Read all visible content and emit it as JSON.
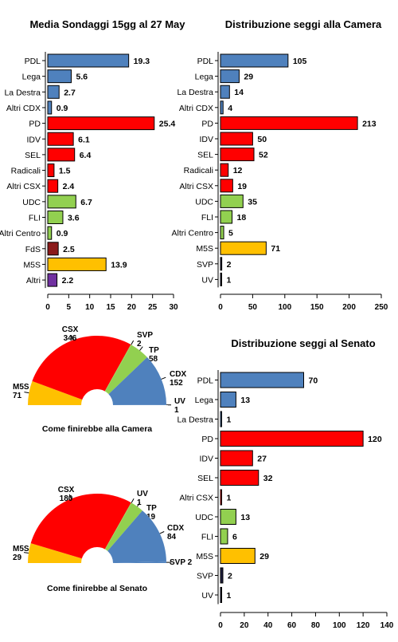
{
  "bar_charts": [
    {
      "title": "Media Sondaggi 15gg al 27 May",
      "xlim": [
        0,
        30
      ],
      "ticks": [
        0,
        5,
        10,
        15,
        20,
        25,
        30
      ],
      "categories": [
        "PDL",
        "Lega",
        "La Destra",
        "Altri CDX",
        "PD",
        "IDV",
        "SEL",
        "Radicali",
        "Altri CSX",
        "UDC",
        "FLI",
        "Altri Centro",
        "FdS",
        "M5S",
        "Altri"
      ],
      "values": [
        19.3,
        5.6,
        2.7,
        0.9,
        25.4,
        6.1,
        6.4,
        1.5,
        2.4,
        6.7,
        3.6,
        0.9,
        2.5,
        13.9,
        2.2
      ],
      "labels": [
        "19.3",
        "5.6",
        "2.7",
        "0.9",
        "25.4",
        "6.1",
        "6.4",
        "1.5",
        "2.4",
        "6.7",
        "3.6",
        "0.9",
        "2.5",
        "13.9",
        "2.2"
      ],
      "colors": [
        "#4F81BD",
        "#4F81BD",
        "#4F81BD",
        "#4F81BD",
        "#FF0000",
        "#FF0000",
        "#FF0000",
        "#FF0000",
        "#FF0000",
        "#92D050",
        "#92D050",
        "#92D050",
        "#8B1A1A",
        "#FFC000",
        "#7030A0"
      ]
    },
    {
      "title": "Distribuzione seggi alla Camera",
      "xlim": [
        0,
        250
      ],
      "ticks": [
        0,
        50,
        100,
        150,
        200,
        250
      ],
      "categories": [
        "PDL",
        "Lega",
        "La Destra",
        "Altri CDX",
        "PD",
        "IDV",
        "SEL",
        "Radicali",
        "Altri CSX",
        "UDC",
        "FLI",
        "Altri Centro",
        "M5S",
        "SVP",
        "UV"
      ],
      "values": [
        105,
        29,
        14,
        4,
        213,
        50,
        52,
        12,
        19,
        35,
        18,
        5,
        71,
        2,
        1
      ],
      "labels": [
        "105",
        "29",
        "14",
        "4",
        "213",
        "50",
        "52",
        "12",
        "19",
        "35",
        "18",
        "5",
        "71",
        "2",
        "1"
      ],
      "colors": [
        "#4F81BD",
        "#4F81BD",
        "#4F81BD",
        "#4F81BD",
        "#FF0000",
        "#FF0000",
        "#FF0000",
        "#FF0000",
        "#FF0000",
        "#92D050",
        "#92D050",
        "#92D050",
        "#FFC000",
        "#1F1F3F",
        "#1F1F3F"
      ]
    },
    {
      "title": "Distribuzione seggi al Senato",
      "xlim": [
        0,
        140
      ],
      "ticks": [
        0,
        20,
        40,
        60,
        80,
        100,
        120,
        140
      ],
      "categories": [
        "PDL",
        "Lega",
        "La Destra",
        "PD",
        "IDV",
        "SEL",
        "Altri CSX",
        "UDC",
        "FLI",
        "M5S",
        "SVP",
        "UV"
      ],
      "values": [
        70,
        13,
        1,
        120,
        27,
        32,
        1,
        13,
        6,
        29,
        2,
        1
      ],
      "labels": [
        "70",
        "13",
        "1",
        "120",
        "27",
        "32",
        "1",
        "13",
        "6",
        "29",
        "2",
        "1"
      ],
      "colors": [
        "#4F81BD",
        "#4F81BD",
        "#4F81BD",
        "#FF0000",
        "#FF0000",
        "#FF0000",
        "#FF0000",
        "#92D050",
        "#92D050",
        "#FFC000",
        "#1F1F3F",
        "#1F1F3F"
      ]
    }
  ],
  "pie_charts": [
    {
      "caption": "Come finirebbe alla Camera",
      "slices": [
        {
          "name": "M5S",
          "value": 71,
          "color": "#FFC000",
          "label": "M5S\n71"
        },
        {
          "name": "CSX",
          "value": 346,
          "color": "#FF0000",
          "label": "CSX\n346"
        },
        {
          "name": "SVP",
          "value": 2,
          "color": "#92D050",
          "label": "SVP\n2"
        },
        {
          "name": "TP",
          "value": 58,
          "color": "#92D050",
          "label": "TP\n58"
        },
        {
          "name": "CDX",
          "value": 152,
          "color": "#4F81BD",
          "label": "CDX\n152"
        },
        {
          "name": "UV",
          "value": 1,
          "color": "#4F81BD",
          "label": "UV\n1"
        }
      ]
    },
    {
      "caption": "Come finirebbe al Senato",
      "slices": [
        {
          "name": "M5S",
          "value": 29,
          "color": "#FFC000",
          "label": "M5S\n29"
        },
        {
          "name": "CSX",
          "value": 180,
          "color": "#FF0000",
          "label": "CSX\n180"
        },
        {
          "name": "UV",
          "value": 1,
          "color": "#92D050",
          "label": "UV\n1"
        },
        {
          "name": "TP",
          "value": 19,
          "color": "#92D050",
          "label": "TP\n19"
        },
        {
          "name": "CDX",
          "value": 84,
          "color": "#4F81BD",
          "label": "CDX\n84"
        },
        {
          "name": "SVP",
          "value": 2,
          "color": "#4F81BD",
          "label": "SVP 2"
        }
      ]
    }
  ],
  "chart_data": [
    {
      "type": "bar",
      "title": "Media Sondaggi 15gg al 27 May",
      "categories": [
        "PDL",
        "Lega",
        "La Destra",
        "Altri CDX",
        "PD",
        "IDV",
        "SEL",
        "Radicali",
        "Altri CSX",
        "UDC",
        "FLI",
        "Altri Centro",
        "FdS",
        "M5S",
        "Altri"
      ],
      "values": [
        19.3,
        5.6,
        2.7,
        0.9,
        25.4,
        6.1,
        6.4,
        1.5,
        2.4,
        6.7,
        3.6,
        0.9,
        2.5,
        13.9,
        2.2
      ],
      "xlim": [
        0,
        30
      ]
    },
    {
      "type": "bar",
      "title": "Distribuzione seggi alla Camera",
      "categories": [
        "PDL",
        "Lega",
        "La Destra",
        "Altri CDX",
        "PD",
        "IDV",
        "SEL",
        "Radicali",
        "Altri CSX",
        "UDC",
        "FLI",
        "Altri Centro",
        "M5S",
        "SVP",
        "UV"
      ],
      "values": [
        105,
        29,
        14,
        4,
        213,
        50,
        52,
        12,
        19,
        35,
        18,
        5,
        71,
        2,
        1
      ],
      "xlim": [
        0,
        250
      ]
    },
    {
      "type": "bar",
      "title": "Distribuzione seggi al Senato",
      "categories": [
        "PDL",
        "Lega",
        "La Destra",
        "PD",
        "IDV",
        "SEL",
        "Altri CSX",
        "UDC",
        "FLI",
        "M5S",
        "SVP",
        "UV"
      ],
      "values": [
        70,
        13,
        1,
        120,
        27,
        32,
        1,
        13,
        6,
        29,
        2,
        1
      ],
      "xlim": [
        0,
        140
      ]
    },
    {
      "type": "pie",
      "title": "Come finirebbe alla Camera",
      "categories": [
        "M5S",
        "CSX",
        "SVP",
        "TP",
        "CDX",
        "UV"
      ],
      "values": [
        71,
        346,
        2,
        58,
        152,
        1
      ]
    },
    {
      "type": "pie",
      "title": "Come finirebbe al Senato",
      "categories": [
        "M5S",
        "CSX",
        "UV",
        "TP",
        "CDX",
        "SVP"
      ],
      "values": [
        29,
        180,
        1,
        19,
        84,
        2
      ]
    }
  ]
}
